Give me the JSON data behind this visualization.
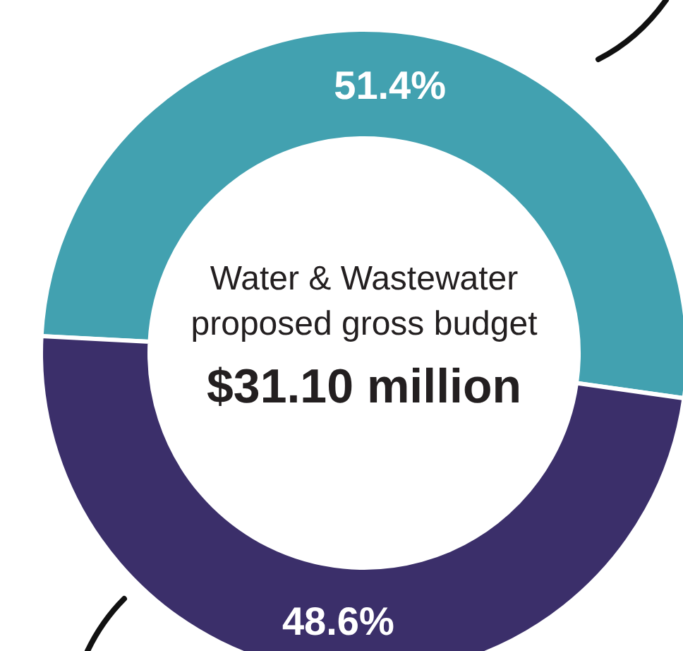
{
  "chart_data": {
    "type": "donut",
    "title": "$31.10 million",
    "subtitle": "Water & Wastewater proposed gross budget",
    "categories": [
      null,
      null
    ],
    "values": [
      51.4,
      48.6
    ],
    "colors": [
      "#42a1b0",
      "#3b2f6a"
    ],
    "value_labels": [
      "51.4%",
      "48.6%"
    ]
  }
}
